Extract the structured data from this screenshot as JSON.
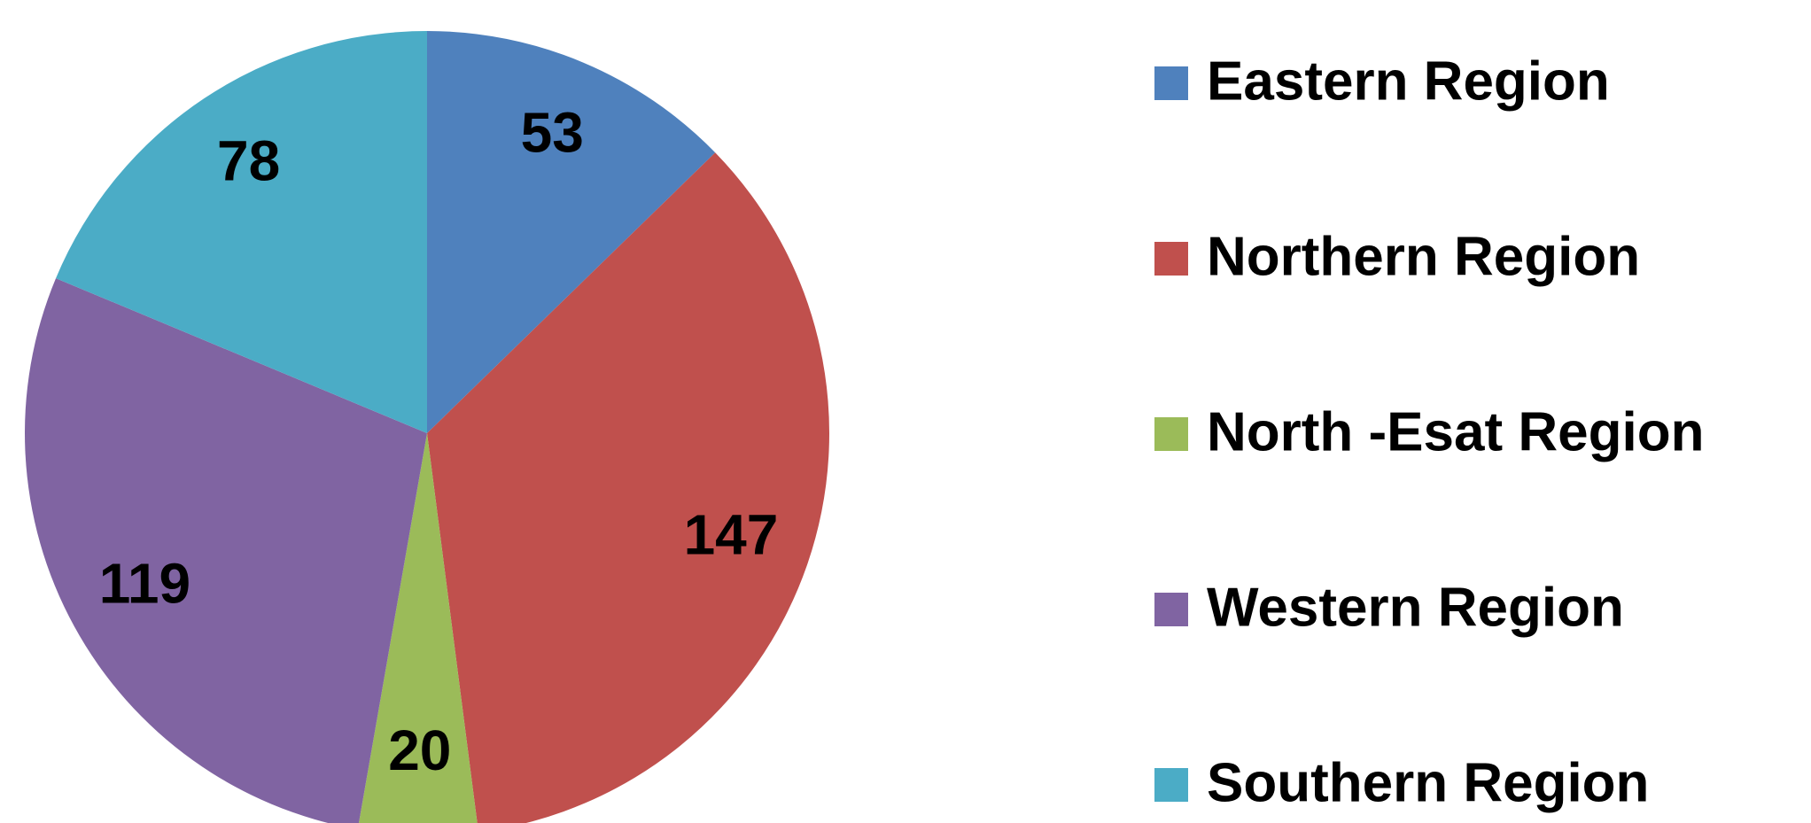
{
  "chart_data": {
    "type": "pie",
    "categories": [
      "Eastern Region",
      "Northern Region",
      "North -Esat Region",
      "Western Region",
      "Southern Region"
    ],
    "values": [
      53,
      147,
      20,
      119,
      78
    ],
    "colors": [
      "#4f81bd",
      "#c0504d",
      "#9bbb59",
      "#8064a2",
      "#4bacc6"
    ],
    "legend": "right"
  }
}
